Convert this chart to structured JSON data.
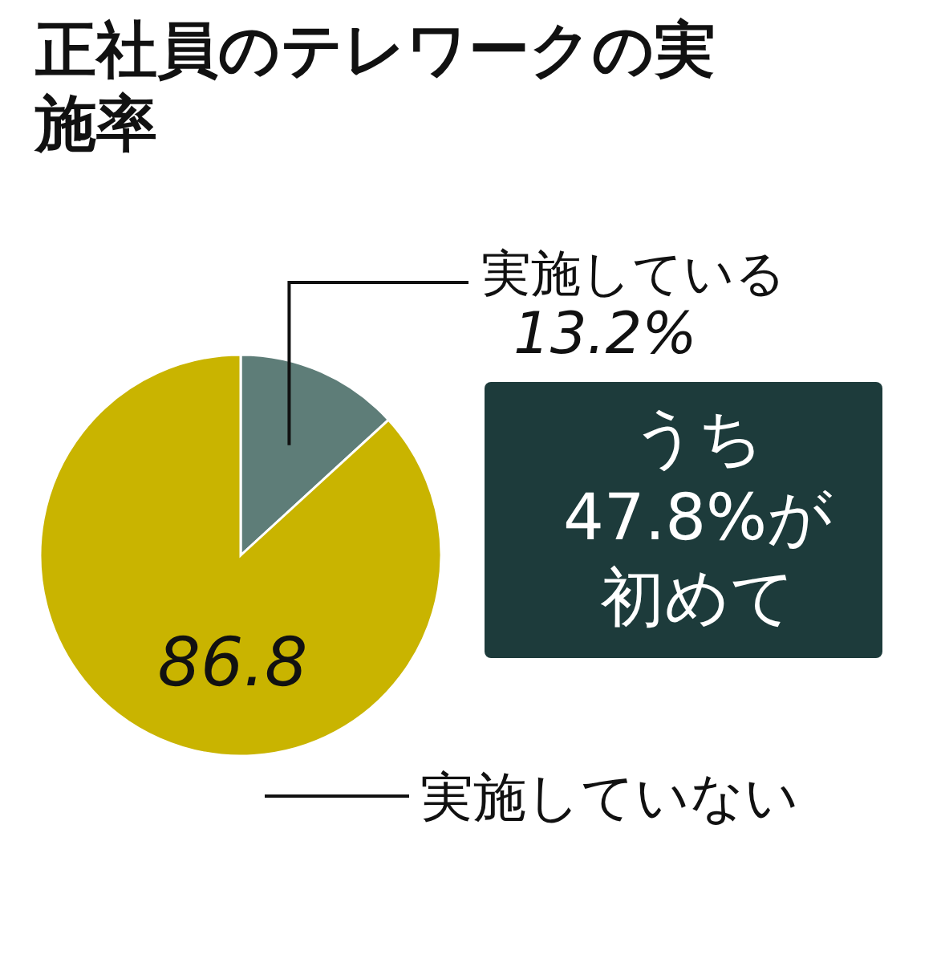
{
  "chart_data": {
    "type": "pie",
    "title": "正社員のテレワークの実施率",
    "categories": [
      "実施している",
      "実施していない"
    ],
    "values": [
      13.2,
      86.8
    ],
    "colors": [
      "#5e7d78",
      "#c9b400"
    ],
    "value_labels": [
      "13.2%",
      "86.8"
    ],
    "annotations": [
      "うち47.8%が初めて"
    ]
  }
}
